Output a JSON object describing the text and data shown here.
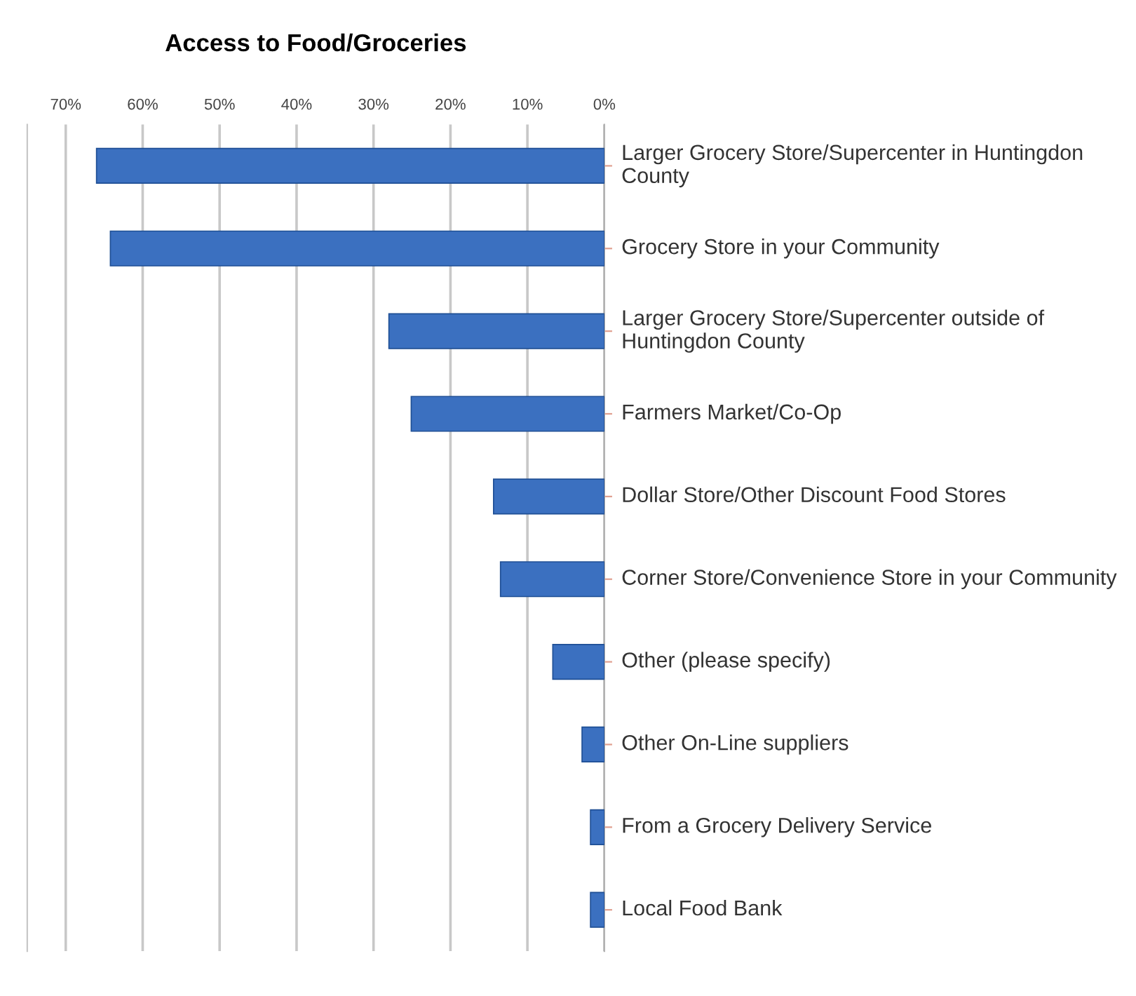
{
  "chart_data": {
    "type": "bar",
    "orientation": "horizontal",
    "title": "Access to Food/Groceries",
    "categories": [
      "Larger Grocery Store/Supercenter in Huntingdon County",
      "Grocery Store in your Community",
      "Larger Grocery Store/Supercenter outside of Huntingdon County",
      "Farmers Market/Co-Op",
      "Dollar Store/Other Discount Food Stores",
      "Corner Store/Convenience Store in your Community",
      "Other (please specify)",
      "Other On-Line suppliers",
      "From a Grocery Delivery Service",
      "Local Food Bank"
    ],
    "values": [
      66,
      64.2,
      28,
      25.1,
      14.4,
      13.5,
      6.7,
      2.9,
      1.8,
      1.8
    ],
    "color": "#3b70c0",
    "xlim": [
      75,
      0
    ],
    "xticks": [
      {
        "value": 70,
        "label": "70%"
      },
      {
        "value": 60,
        "label": "60%"
      },
      {
        "value": 50,
        "label": "50%"
      },
      {
        "value": 40,
        "label": "40%"
      },
      {
        "value": 30,
        "label": "30%"
      },
      {
        "value": 20,
        "label": "20%"
      },
      {
        "value": 10,
        "label": "10%"
      },
      {
        "value": 0,
        "label": "0%"
      }
    ],
    "grid": "x",
    "legend": false
  }
}
